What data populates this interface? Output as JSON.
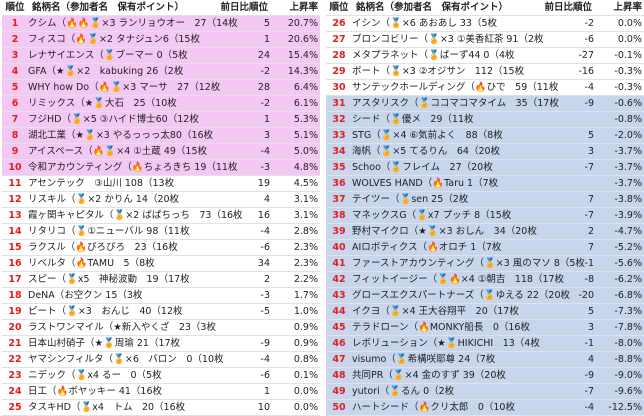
{
  "header": {
    "rank": "順位",
    "name": "銘柄名（参加者名　保有ポイント）",
    "change": "前日比順位",
    "rate": "上昇率"
  },
  "tables": [
    {
      "sections": [
        {
          "color": "#f4c8f4",
          "rows": [
            [
              1,
              "クシム（🔥🔥🏅×3 ランリョウオー　27（14枚",
              5,
              "20.7%"
            ],
            [
              2,
              "フィスコ（🔥🏅×2 タナジュン6（15枚",
              1,
              "20.6%"
            ],
            [
              3,
              "レナサイエンス（🏅ブーマー 0（5枚",
              24,
              "15.4%"
            ],
            [
              4,
              "GFA（★🏅×2　kabuking 26（2枚",
              -2,
              "14.3%"
            ],
            [
              5,
              "WHY how Do（🔥🏅×3 マーサ　27（12枚",
              28,
              "6.4%"
            ],
            [
              6,
              "リミックス（★🏅大石　25（10枚",
              -2,
              "6.1%"
            ],
            [
              7,
              "フジHD（🏅×5 ③ハイド博士60（12枚",
              1,
              "5.3%"
            ],
            [
              8,
              "湖北工業（★🏅×3 やるっっっ太80（16枚",
              3,
              "5.1%"
            ],
            [
              9,
              "アイスペース（🔥🏅×4 ①土蔵 49（15枚",
              -4,
              "5.0%"
            ],
            [
              10,
              "令和アカウンティング（🔥ちょろきち 19（11枚",
              -3,
              "4.8%"
            ]
          ]
        },
        {
          "color": "#ffffff",
          "rows": [
            [
              11,
              "アセンテック　③山川 108（13枚",
              19,
              "4.5%"
            ],
            [
              12,
              "リスキル（🏅×2 かりん 14（20枚",
              4,
              "3.1%"
            ],
            [
              13,
              "霞ヶ関キャピタル（🏅×2 ばぱちっち　73（16枚",
              16,
              "3.1%"
            ],
            [
              14,
              "リタリコ（🏅①ニューバル 98（11枚",
              -4,
              "2.8%"
            ],
            [
              15,
              "ラクスル（🔥ぴろぴろ　23（16枚",
              -6,
              "2.3%"
            ],
            [
              16,
              "リベルタ（🔥TAMU　5（8枚",
              34,
              "2.3%"
            ],
            [
              17,
              "スピー（🏅x5　神秘波動　19（17枚",
              2,
              "2.2%"
            ],
            [
              18,
              "DeNA（お空クン 15（3枚",
              -3,
              "1.7%"
            ],
            [
              19,
              "ピート（🏅×3　おんじ　40（12枚",
              -5,
              "1.0%"
            ],
            [
              20,
              "ラストワンマイル（★新入やくざ　23（3枚",
              null,
              "0.9%"
            ],
            [
              21,
              "日本山村硝子（★🏅周瑜 21（17枚",
              -9,
              "0.9%"
            ],
            [
              22,
              "ヤマシンフィルタ（🏅×6　バロン　0（10枚",
              -4,
              "0.8%"
            ],
            [
              23,
              "ニデック（🏅x4 るー　0（5枚",
              -6,
              "0.1%"
            ],
            [
              24,
              "日工（🔥ボヤッキー 41（16枚",
              1,
              "0.0%"
            ],
            [
              25,
              "タスキHD（🏅x4　トム　20（16枚",
              10,
              "0.0%"
            ]
          ]
        }
      ]
    },
    {
      "sections": [
        {
          "color": "#ffffff",
          "rows": [
            [
              26,
              "イシン（🏅×6 あおあし 33（5枚",
              -2,
              "0.0%"
            ],
            [
              27,
              "ブロンコビリー（🏅×3 ①美香紅茶 91（2枚",
              -6,
              "0.0%"
            ],
            [
              28,
              "メタプラネット（🏅ばーず44 0（4枚",
              -27,
              "-0.1%"
            ],
            [
              29,
              "ボート（🏅×3 ②オジサン　112（15枚",
              -16,
              "-0.3%"
            ],
            [
              30,
              "サンテックホールディング（🔥ひで　59（11枚",
              -4,
              "-0.3%"
            ]
          ]
        },
        {
          "color": "#c7d6ec",
          "rows": [
            [
              31,
              "アスタリスク（🏅ココマコマタイム　35（17枚",
              -9,
              "-0.6%"
            ],
            [
              32,
              "シード（🏅優メ　29（11枚",
              null,
              "-0.8%"
            ],
            [
              33,
              "STG（🏅×4 ⑥気前よく　88（8枚",
              5,
              "-2.0%"
            ],
            [
              34,
              "海帆（🏅×5 てるりん　64（20枚",
              3,
              "-3.7%"
            ],
            [
              35,
              "Schoo（🏅フレイム　27（20枚",
              -7,
              "-3.7%"
            ],
            [
              36,
              "WOLVES HAND（🔥Taru 1（7枚",
              null,
              "-3.7%"
            ],
            [
              37,
              "テイツー（🏅sen 25（2枚",
              7,
              "-3.8%"
            ],
            [
              38,
              "マネックスG（🏅x7 プッチ 8（15枚",
              -7,
              "-3.9%"
            ],
            [
              39,
              "野村マイクロ（★🏅×3 おしん　34（20枚",
              2,
              "-4.7%"
            ],
            [
              40,
              "AIロボティクス（🔥オロチ 1（7枚",
              7,
              "-5.2%"
            ],
            [
              41,
              "ファーストアカウンティング（🏅×3 風のマソ 8（5枚",
              -1,
              "-5.6%"
            ],
            [
              42,
              "フィットイージー（🏅🔥×4 ①朝吉　118（17枚",
              -8,
              "-6.2%"
            ],
            [
              43,
              "グロースエクスパートナーズ（🏅ゆえる 22（20枚",
              -20,
              "-6.8%"
            ],
            [
              44,
              "イクヨ（🏅×4 王大谷翔平　20（17枚",
              5,
              "-7.3%"
            ],
            [
              45,
              "テラドローン（🔥MONKY船長　0（16枚",
              3,
              "-7.8%"
            ],
            [
              46,
              "レボリューション（★🏅HIKICHI　13（4枚",
              -1,
              "-8.0%"
            ],
            [
              47,
              "visumo（🏅希構咲耶尊 24（7枚",
              4,
              "-8.8%"
            ],
            [
              48,
              "共同PR（🏅×4 金のすず 39（20枚",
              -9,
              "-9.0%"
            ],
            [
              49,
              "yutori（🏅るん 0（2枚",
              -7,
              "-9.6%"
            ],
            [
              50,
              "ハートシード（🔥クリ太郎　0（10枚",
              -4,
              "-12.5%"
            ]
          ]
        }
      ]
    }
  ]
}
